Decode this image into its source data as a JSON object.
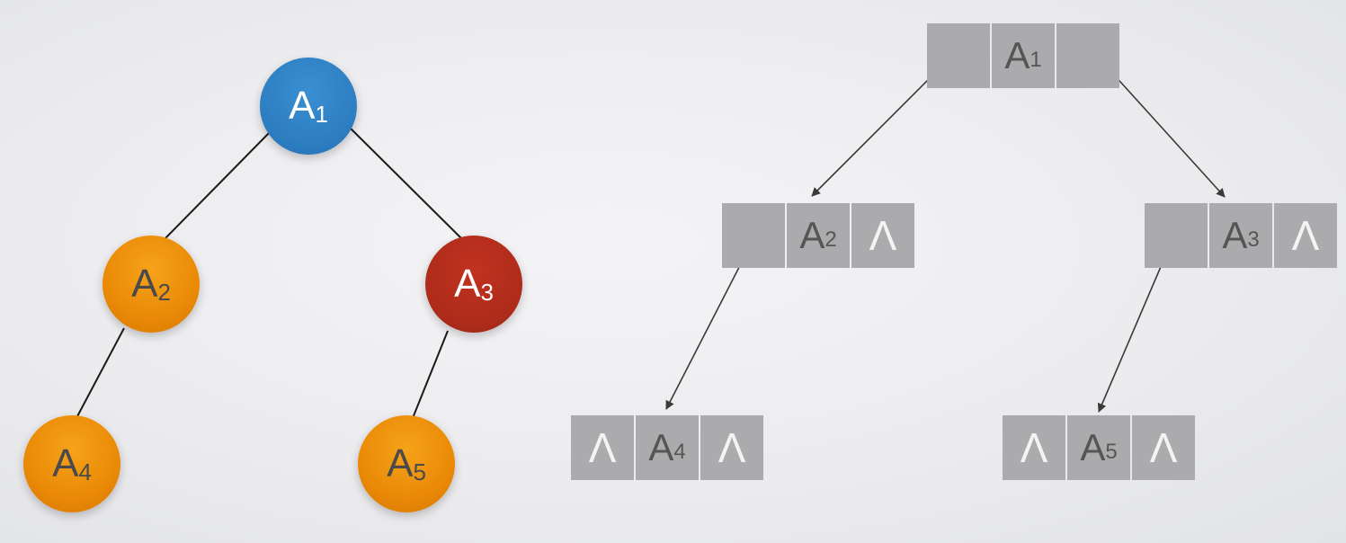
{
  "tree_nodes": [
    {
      "id": "a1",
      "letter": "A",
      "index": "1",
      "color": "#2c7cc0"
    },
    {
      "id": "a2",
      "letter": "A",
      "index": "2",
      "color": "#ea8a06"
    },
    {
      "id": "a3",
      "letter": "A",
      "index": "3",
      "color": "#ad2b1a"
    },
    {
      "id": "a4",
      "letter": "A",
      "index": "4",
      "color": "#ea8a06"
    },
    {
      "id": "a5",
      "letter": "A",
      "index": "5",
      "color": "#ea8a06"
    }
  ],
  "tree_edges": [
    [
      "a1",
      "a2"
    ],
    [
      "a1",
      "a3"
    ],
    [
      "a2",
      "a4"
    ],
    [
      "a3",
      "a5"
    ]
  ],
  "list_nodes": [
    {
      "id": "l1",
      "left": "",
      "letter": "A",
      "index": "1",
      "right": ""
    },
    {
      "id": "l2",
      "left": "",
      "letter": "A",
      "index": "2",
      "right": "Λ"
    },
    {
      "id": "l3",
      "left": "",
      "letter": "A",
      "index": "3",
      "right": "Λ"
    },
    {
      "id": "l4",
      "left": "Λ",
      "letter": "A",
      "index": "4",
      "right": "Λ"
    },
    {
      "id": "l5",
      "left": "Λ",
      "letter": "A",
      "index": "5",
      "right": "Λ"
    }
  ],
  "colors": {
    "cell": "#ababad",
    "null_symbol": "#f4f4f4",
    "edge": "#1a1a1a",
    "arrow": "#3a3a3a"
  }
}
